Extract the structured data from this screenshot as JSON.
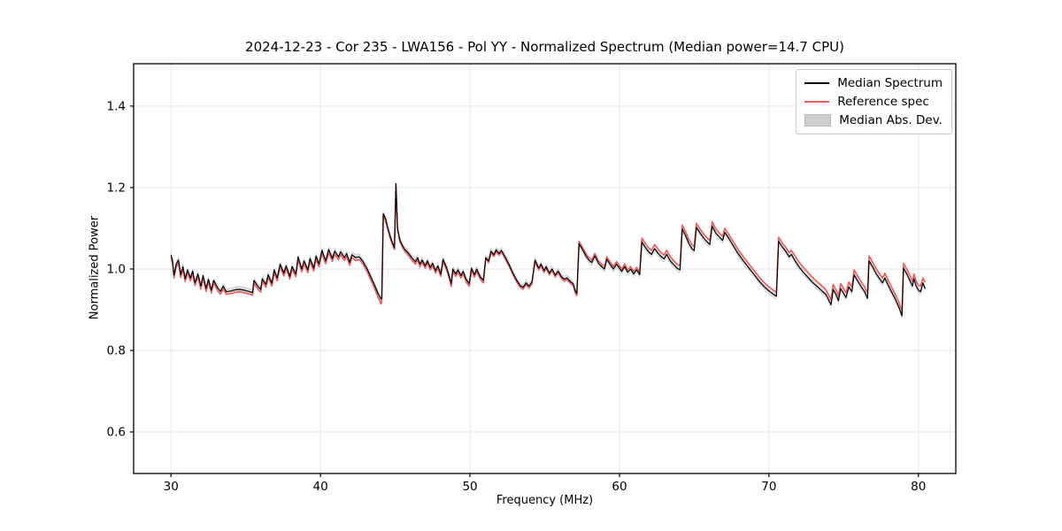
{
  "title": "2024-12-23 - Cor 235 - LWA156 - Pol YY - Normalized Spectrum (Median power=14.7 CPU)",
  "style_colors": {
    "background": "#ffffff",
    "grid": "#e6e6e6",
    "spine": "#000000",
    "median_line": "#000000",
    "reference_line": "#ef5c5c",
    "mad_band_fill": "rgba(175,175,175,0.45)",
    "mad_band_swatch": "#cfcfcf"
  },
  "legend": [
    {
      "label": "Median Spectrum",
      "swatch": "line",
      "color": "#000000"
    },
    {
      "label": "Reference spec",
      "swatch": "line",
      "color": "#ef5c5c"
    },
    {
      "label": "Median Abs. Dev.",
      "swatch": "patch",
      "color": "#cfcfcf"
    }
  ],
  "chart_data": {
    "type": "line",
    "title": "2024-12-23 - Cor 235 - LWA156 - Pol YY - Normalized Spectrum (Median power=14.7 CPU)",
    "xlabel": "Frequency (MHz)",
    "ylabel": "Normalized Power",
    "xlim": [
      27.5,
      82.5
    ],
    "ylim": [
      0.498,
      1.504
    ],
    "xticks": {
      "values": [
        30,
        40,
        50,
        60,
        70,
        80
      ],
      "labels": [
        "30",
        "40",
        "50",
        "60",
        "70",
        "80"
      ]
    },
    "yticks": {
      "values": [
        0.6,
        0.8,
        1.0,
        1.2,
        1.4
      ],
      "labels": [
        "0.6",
        "0.8",
        "1.0",
        "1.2",
        "1.4"
      ]
    },
    "grid": true,
    "legend_position": "upper right",
    "series_names": [
      "Median Spectrum",
      "Reference spec",
      "Median Abs. Dev."
    ],
    "mad_band_half_width": 0.009,
    "columns": [
      "frequency_mhz",
      "median_spectrum",
      "reference_spec"
    ],
    "samples": [
      [
        30.0,
        1.034,
        1.027
      ],
      [
        30.1,
        1.022,
        1.015
      ],
      [
        30.2,
        0.985,
        0.978
      ],
      [
        30.35,
        1.012,
        1.005
      ],
      [
        30.5,
        1.022,
        1.015
      ],
      [
        30.65,
        0.986,
        0.979
      ],
      [
        30.8,
        1.006,
        0.999
      ],
      [
        30.95,
        0.976,
        0.969
      ],
      [
        31.1,
        0.998,
        0.991
      ],
      [
        31.3,
        0.978,
        0.971
      ],
      [
        31.45,
        0.995,
        0.988
      ],
      [
        31.6,
        0.966,
        0.959
      ],
      [
        31.8,
        0.988,
        0.981
      ],
      [
        32.0,
        0.958,
        0.951
      ],
      [
        32.15,
        0.984,
        0.977
      ],
      [
        32.35,
        0.952,
        0.945
      ],
      [
        32.5,
        0.975,
        0.968
      ],
      [
        32.7,
        0.948,
        0.941
      ],
      [
        32.85,
        0.972,
        0.965
      ],
      [
        33.1,
        0.955,
        0.948
      ],
      [
        33.3,
        0.945,
        0.938
      ],
      [
        33.5,
        0.958,
        0.951
      ],
      [
        33.7,
        0.944,
        0.938
      ],
      [
        34.0,
        0.946,
        0.94
      ],
      [
        34.3,
        0.949,
        0.943
      ],
      [
        34.6,
        0.95,
        0.944
      ],
      [
        34.9,
        0.948,
        0.942
      ],
      [
        35.2,
        0.945,
        0.939
      ],
      [
        35.45,
        0.942,
        0.936
      ],
      [
        35.55,
        0.972,
        0.965
      ],
      [
        35.8,
        0.958,
        0.951
      ],
      [
        36.0,
        0.95,
        0.943
      ],
      [
        36.1,
        0.976,
        0.969
      ],
      [
        36.35,
        0.962,
        0.955
      ],
      [
        36.5,
        0.986,
        0.979
      ],
      [
        36.75,
        0.965,
        0.958
      ],
      [
        36.9,
        0.998,
        0.991
      ],
      [
        37.1,
        0.978,
        0.971
      ],
      [
        37.3,
        1.012,
        1.005
      ],
      [
        37.55,
        0.99,
        0.983
      ],
      [
        37.7,
        1.008,
        1.001
      ],
      [
        37.95,
        0.982,
        0.975
      ],
      [
        38.1,
        1.006,
        0.999
      ],
      [
        38.35,
        0.988,
        0.981
      ],
      [
        38.5,
        1.03,
        1.023
      ],
      [
        38.75,
        1.0,
        0.993
      ],
      [
        38.9,
        1.02,
        1.013
      ],
      [
        39.15,
        0.998,
        0.991
      ],
      [
        39.3,
        1.026,
        1.019
      ],
      [
        39.55,
        1.002,
        0.995
      ],
      [
        39.7,
        1.032,
        1.025
      ],
      [
        39.9,
        1.012,
        1.005
      ],
      [
        40.1,
        1.046,
        1.038
      ],
      [
        40.35,
        1.02,
        1.013
      ],
      [
        40.55,
        1.048,
        1.04
      ],
      [
        40.8,
        1.026,
        1.019
      ],
      [
        40.95,
        1.044,
        1.037
      ],
      [
        41.2,
        1.03,
        1.023
      ],
      [
        41.35,
        1.042,
        1.035
      ],
      [
        41.6,
        1.028,
        1.021
      ],
      [
        41.75,
        1.038,
        1.031
      ],
      [
        41.95,
        1.016,
        1.009
      ],
      [
        42.1,
        1.035,
        1.028
      ],
      [
        42.35,
        1.028,
        1.021
      ],
      [
        42.6,
        1.03,
        1.023
      ],
      [
        42.85,
        1.018,
        1.011
      ],
      [
        43.1,
        1.002,
        0.995
      ],
      [
        43.35,
        0.982,
        0.975
      ],
      [
        43.6,
        0.962,
        0.954
      ],
      [
        43.85,
        0.94,
        0.93
      ],
      [
        44.05,
        0.926,
        0.914
      ],
      [
        44.1,
        0.93,
        0.92
      ],
      [
        44.2,
        1.136,
        1.13
      ],
      [
        44.35,
        1.124,
        1.119
      ],
      [
        44.5,
        1.102,
        1.097
      ],
      [
        44.65,
        1.082,
        1.077
      ],
      [
        44.8,
        1.066,
        1.061
      ],
      [
        44.95,
        1.052,
        1.048
      ],
      [
        45.05,
        1.21,
        1.205
      ],
      [
        45.15,
        1.102,
        1.098
      ],
      [
        45.3,
        1.072,
        1.068
      ],
      [
        45.45,
        1.06,
        1.056
      ],
      [
        45.6,
        1.05,
        1.046
      ],
      [
        45.75,
        1.044,
        1.039
      ],
      [
        45.95,
        1.036,
        1.03
      ],
      [
        46.15,
        1.026,
        1.02
      ],
      [
        46.35,
        1.018,
        1.012
      ],
      [
        46.5,
        1.028,
        1.022
      ],
      [
        46.65,
        1.012,
        1.006
      ],
      [
        46.8,
        1.022,
        1.016
      ],
      [
        47.0,
        1.008,
        1.002
      ],
      [
        47.15,
        1.02,
        1.014
      ],
      [
        47.35,
        1.004,
        0.998
      ],
      [
        47.5,
        1.014,
        1.008
      ],
      [
        47.7,
        0.996,
        0.99
      ],
      [
        47.85,
        1.008,
        1.002
      ],
      [
        48.05,
        0.988,
        0.982
      ],
      [
        48.2,
        1.024,
        1.018
      ],
      [
        48.45,
        1.002,
        0.996
      ],
      [
        48.65,
        0.978,
        0.972
      ],
      [
        48.75,
        0.964,
        0.957
      ],
      [
        48.85,
        1.0,
        0.994
      ],
      [
        49.05,
        0.988,
        0.982
      ],
      [
        49.2,
        0.998,
        0.992
      ],
      [
        49.4,
        0.984,
        0.978
      ],
      [
        49.55,
        0.994,
        0.988
      ],
      [
        49.75,
        0.974,
        0.968
      ],
      [
        49.95,
        0.964,
        0.958
      ],
      [
        50.1,
        1.002,
        0.996
      ],
      [
        50.3,
        0.986,
        0.98
      ],
      [
        50.45,
        1.0,
        0.994
      ],
      [
        50.7,
        0.98,
        0.974
      ],
      [
        50.9,
        0.972,
        0.966
      ],
      [
        51.05,
        1.028,
        1.024
      ],
      [
        51.25,
        1.02,
        1.016
      ],
      [
        51.4,
        1.044,
        1.04
      ],
      [
        51.6,
        1.035,
        1.031
      ],
      [
        51.75,
        1.047,
        1.043
      ],
      [
        51.95,
        1.038,
        1.034
      ],
      [
        52.1,
        1.046,
        1.042
      ],
      [
        52.35,
        1.03,
        1.026
      ],
      [
        52.6,
        1.012,
        1.008
      ],
      [
        52.85,
        0.992,
        0.988
      ],
      [
        53.1,
        0.974,
        0.97
      ],
      [
        53.35,
        0.96,
        0.956
      ],
      [
        53.55,
        0.955,
        0.951
      ],
      [
        53.75,
        0.966,
        0.962
      ],
      [
        53.95,
        0.958,
        0.954
      ],
      [
        54.15,
        0.968,
        0.964
      ],
      [
        54.35,
        1.022,
        1.018
      ],
      [
        54.6,
        1.002,
        0.998
      ],
      [
        54.75,
        1.012,
        1.008
      ],
      [
        54.95,
        0.996,
        0.992
      ],
      [
        55.1,
        1.006,
        1.002
      ],
      [
        55.3,
        0.99,
        0.986
      ],
      [
        55.5,
        1.0,
        0.996
      ],
      [
        55.7,
        0.985,
        0.981
      ],
      [
        55.9,
        0.995,
        0.991
      ],
      [
        56.1,
        0.982,
        0.978
      ],
      [
        56.3,
        0.975,
        0.971
      ],
      [
        56.5,
        0.978,
        0.974
      ],
      [
        56.7,
        0.97,
        0.966
      ],
      [
        56.9,
        0.964,
        0.96
      ],
      [
        57.05,
        0.946,
        0.941
      ],
      [
        57.15,
        0.94,
        0.935
      ],
      [
        57.3,
        1.062,
        1.068
      ],
      [
        57.55,
        1.046,
        1.052
      ],
      [
        57.75,
        1.032,
        1.038
      ],
      [
        57.95,
        1.022,
        1.028
      ],
      [
        58.15,
        1.016,
        1.022
      ],
      [
        58.35,
        1.032,
        1.038
      ],
      [
        58.6,
        1.014,
        1.02
      ],
      [
        58.8,
        1.006,
        1.012
      ],
      [
        59.0,
        1.0,
        1.006
      ],
      [
        59.15,
        1.024,
        1.03
      ],
      [
        59.4,
        1.01,
        1.016
      ],
      [
        59.6,
        1.0,
        1.006
      ],
      [
        59.8,
        1.012,
        1.018
      ],
      [
        60.0,
        1.002,
        1.008
      ],
      [
        60.15,
        0.994,
        1.0
      ],
      [
        60.35,
        1.006,
        1.012
      ],
      [
        60.55,
        0.992,
        0.998
      ],
      [
        60.75,
        1.0,
        1.006
      ],
      [
        60.95,
        0.988,
        0.994
      ],
      [
        61.15,
        0.998,
        1.004
      ],
      [
        61.35,
        0.986,
        0.992
      ],
      [
        61.5,
        1.066,
        1.076
      ],
      [
        61.75,
        1.052,
        1.062
      ],
      [
        61.95,
        1.042,
        1.052
      ],
      [
        62.15,
        1.036,
        1.046
      ],
      [
        62.35,
        1.05,
        1.06
      ],
      [
        62.6,
        1.038,
        1.048
      ],
      [
        62.8,
        1.03,
        1.04
      ],
      [
        63.0,
        1.025,
        1.035
      ],
      [
        63.15,
        1.036,
        1.046
      ],
      [
        63.4,
        1.02,
        1.03
      ],
      [
        63.65,
        1.01,
        1.02
      ],
      [
        63.85,
        1.002,
        1.012
      ],
      [
        64.05,
        0.998,
        1.008
      ],
      [
        64.2,
        1.098,
        1.108
      ],
      [
        64.45,
        1.08,
        1.09
      ],
      [
        64.65,
        1.062,
        1.072
      ],
      [
        64.85,
        1.05,
        1.06
      ],
      [
        65.0,
        1.045,
        1.055
      ],
      [
        65.15,
        1.102,
        1.112
      ],
      [
        65.4,
        1.088,
        1.098
      ],
      [
        65.65,
        1.075,
        1.085
      ],
      [
        65.9,
        1.065,
        1.075
      ],
      [
        66.05,
        1.06,
        1.07
      ],
      [
        66.2,
        1.105,
        1.116
      ],
      [
        66.45,
        1.088,
        1.098
      ],
      [
        66.7,
        1.078,
        1.088
      ],
      [
        66.9,
        1.07,
        1.08
      ],
      [
        67.05,
        1.09,
        1.1
      ],
      [
        67.3,
        1.076,
        1.086
      ],
      [
        67.6,
        1.058,
        1.068
      ],
      [
        67.9,
        1.04,
        1.05
      ],
      [
        68.2,
        1.024,
        1.034
      ],
      [
        68.5,
        1.01,
        1.02
      ],
      [
        68.8,
        0.996,
        1.006
      ],
      [
        69.1,
        0.982,
        0.992
      ],
      [
        69.4,
        0.968,
        0.978
      ],
      [
        69.7,
        0.956,
        0.966
      ],
      [
        70.0,
        0.946,
        0.956
      ],
      [
        70.3,
        0.938,
        0.948
      ],
      [
        70.5,
        0.933,
        0.943
      ],
      [
        70.65,
        1.068,
        1.078
      ],
      [
        70.9,
        1.054,
        1.064
      ],
      [
        71.15,
        1.042,
        1.052
      ],
      [
        71.35,
        1.03,
        1.04
      ],
      [
        71.5,
        1.036,
        1.046
      ],
      [
        71.75,
        1.02,
        1.032
      ],
      [
        72.0,
        1.006,
        1.018
      ],
      [
        72.3,
        0.992,
        1.004
      ],
      [
        72.6,
        0.98,
        0.992
      ],
      [
        72.9,
        0.968,
        0.98
      ],
      [
        73.2,
        0.958,
        0.97
      ],
      [
        73.5,
        0.948,
        0.96
      ],
      [
        73.8,
        0.938,
        0.95
      ],
      [
        74.0,
        0.924,
        0.936
      ],
      [
        74.15,
        0.912,
        0.924
      ],
      [
        74.3,
        0.95,
        0.962
      ],
      [
        74.5,
        0.936,
        0.948
      ],
      [
        74.65,
        0.922,
        0.934
      ],
      [
        74.8,
        0.952,
        0.964
      ],
      [
        75.0,
        0.94,
        0.952
      ],
      [
        75.15,
        0.93,
        0.942
      ],
      [
        75.35,
        0.956,
        0.968
      ],
      [
        75.55,
        0.944,
        0.956
      ],
      [
        75.7,
        0.986,
        0.998
      ],
      [
        75.95,
        0.97,
        0.982
      ],
      [
        76.15,
        0.958,
        0.97
      ],
      [
        76.4,
        0.944,
        0.956
      ],
      [
        76.6,
        0.928,
        0.94
      ],
      [
        76.7,
        1.02,
        1.032
      ],
      [
        76.95,
        1.004,
        1.016
      ],
      [
        77.15,
        0.99,
        1.002
      ],
      [
        77.4,
        0.976,
        0.988
      ],
      [
        77.6,
        0.966,
        0.978
      ],
      [
        77.75,
        0.978,
        0.99
      ],
      [
        77.95,
        0.962,
        0.974
      ],
      [
        78.2,
        0.944,
        0.956
      ],
      [
        78.45,
        0.926,
        0.938
      ],
      [
        78.7,
        0.906,
        0.918
      ],
      [
        78.9,
        0.885,
        0.898
      ],
      [
        79.0,
        1.002,
        1.014
      ],
      [
        79.25,
        0.986,
        0.998
      ],
      [
        79.45,
        0.97,
        0.982
      ],
      [
        79.6,
        0.958,
        0.97
      ],
      [
        79.7,
        0.976,
        0.988
      ],
      [
        79.85,
        0.958,
        0.97
      ],
      [
        80.0,
        0.948,
        0.96
      ],
      [
        80.15,
        0.944,
        0.958
      ],
      [
        80.3,
        0.966,
        0.978
      ],
      [
        80.45,
        0.952,
        0.968
      ]
    ]
  }
}
